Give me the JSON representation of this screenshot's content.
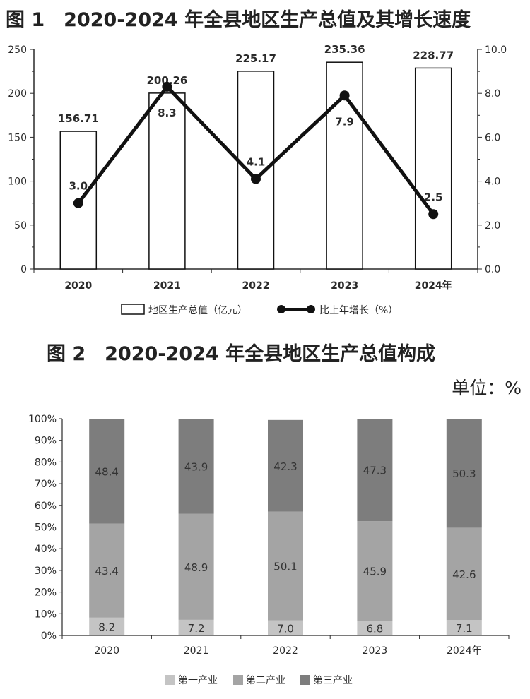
{
  "colors": {
    "text": "#2a2a2a",
    "axis": "#2a2a2a",
    "bar_fill": "#ffffff",
    "bar_stroke": "#111111",
    "line": "#111111",
    "primary": "#c4c4c4",
    "secondary": "#a4a4a4",
    "tertiary": "#7d7d7d"
  },
  "figure1": {
    "title": "图 1　2020-2024 年全县地区生产总值及其增长速度",
    "legend": {
      "bar": "地区生产总值（亿元）",
      "line": "比上年增长（%）"
    }
  },
  "figure2": {
    "title": "图 2　2020-2024 年全县地区生产总值构成",
    "unit": "单位：%"
  },
  "chart_data": [
    {
      "type": "bar",
      "categories": [
        "2020",
        "2021",
        "2022",
        "2023",
        "2024年"
      ],
      "series": [
        {
          "name": "地区生产总值（亿元）",
          "type": "bar",
          "axis": "left",
          "values": [
            156.71,
            200.26,
            225.17,
            235.36,
            228.77
          ],
          "labels": [
            "156.71",
            "200.26",
            "225.17",
            "235.36",
            "228.77"
          ]
        },
        {
          "name": "比上年增长（%）",
          "type": "line",
          "axis": "right",
          "values": [
            3.0,
            8.3,
            4.1,
            7.9,
            2.5
          ],
          "labels": [
            "3.0",
            "8.3",
            "4.1",
            "7.9",
            "2.5"
          ]
        }
      ],
      "y_left": {
        "min": 0,
        "max": 250,
        "ticks": [
          0,
          50,
          100,
          150,
          200,
          250
        ],
        "tick_labels": [
          "0",
          "50",
          "100",
          "150",
          "200",
          "250"
        ]
      },
      "y_right": {
        "min": 0,
        "max": 10,
        "ticks": [
          0,
          2,
          4,
          6,
          8,
          10
        ],
        "tick_labels": [
          "0.0",
          "2.0",
          "4.0",
          "6.0",
          "8.0",
          "10.0"
        ]
      },
      "grid": false,
      "legend_position": "bottom"
    },
    {
      "type": "bar",
      "stacked": true,
      "categories": [
        "2020",
        "2021",
        "2022",
        "2023",
        "2024年"
      ],
      "series": [
        {
          "name": "第一产业",
          "values": [
            8.2,
            7.2,
            7.0,
            6.8,
            7.1
          ],
          "labels": [
            "8.2",
            "7.2",
            "7.0",
            "6.8",
            "7.1"
          ]
        },
        {
          "name": "第二产业",
          "values": [
            43.4,
            48.9,
            50.1,
            45.9,
            42.6
          ],
          "labels": [
            "43.4",
            "48.9",
            "50.1",
            "45.9",
            "42.6"
          ]
        },
        {
          "name": "第三产业",
          "values": [
            48.4,
            43.9,
            42.3,
            47.3,
            50.3
          ],
          "labels": [
            "48.4",
            "43.9",
            "42.3",
            "47.3",
            "50.3"
          ]
        }
      ],
      "y": {
        "min": 0,
        "max": 100,
        "ticks": [
          0,
          10,
          20,
          30,
          40,
          50,
          60,
          70,
          80,
          90,
          100
        ],
        "tick_labels": [
          "0%",
          "10%",
          "20%",
          "30%",
          "40%",
          "50%",
          "60%",
          "70%",
          "80%",
          "90%",
          "100%"
        ]
      },
      "grid": false,
      "legend_position": "bottom"
    }
  ]
}
